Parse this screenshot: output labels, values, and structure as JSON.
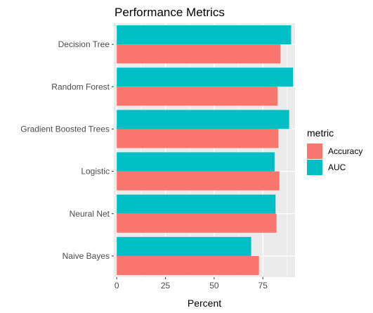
{
  "chart_data": {
    "type": "bar",
    "orientation": "horizontal",
    "title": "Performance Metrics",
    "xlabel": "Percent",
    "ylabel": "",
    "xlim": [
      -1.5,
      91.5
    ],
    "xticks": [
      0,
      25,
      50,
      75
    ],
    "grid": true,
    "legend": {
      "title": "metric",
      "position": "right"
    },
    "categories": [
      "Decision Tree",
      "Random Forest",
      "Gradient Boosted Trees",
      "Logistic",
      "Neural Net",
      "Naive Bayes"
    ],
    "series": [
      {
        "name": "AUC",
        "color": "#00BFC4",
        "values": [
          89.5,
          90.5,
          88.5,
          81,
          81.5,
          69
        ]
      },
      {
        "name": "Accuracy",
        "color": "#F8766D",
        "values": [
          84,
          82.5,
          83,
          83.5,
          82,
          73
        ]
      }
    ]
  }
}
